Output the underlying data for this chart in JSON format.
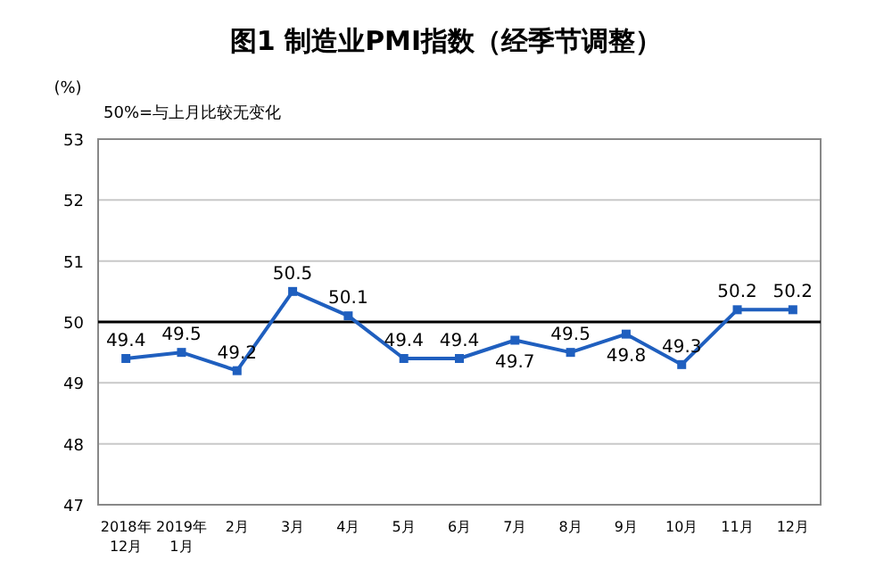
{
  "chart_data": {
    "type": "line",
    "title": "图1  制造业PMI指数（经季节调整）",
    "ylabel": "(%)",
    "annotations": [
      "50%=与上月比较无变化"
    ],
    "categories": [
      "2018年\n12月",
      "2019年\n1月",
      "2月",
      "3月",
      "4月",
      "5月",
      "6月",
      "7月",
      "8月",
      "9月",
      "10月",
      "11月",
      "12月"
    ],
    "series": [
      {
        "color": "#1f5fbf",
        "values": [
          49.4,
          49.5,
          49.2,
          50.5,
          50.1,
          49.4,
          49.4,
          49.7,
          49.5,
          49.8,
          49.3,
          50.2,
          50.2
        ]
      }
    ],
    "ylim": [
      47,
      53
    ],
    "yticks": [
      47,
      48,
      49,
      50,
      51,
      52,
      53
    ],
    "ref_lines": [
      {
        "axis": "y",
        "value": 50,
        "color": "#000000"
      }
    ],
    "grid": "y",
    "marker": "square",
    "data_labels": true
  }
}
